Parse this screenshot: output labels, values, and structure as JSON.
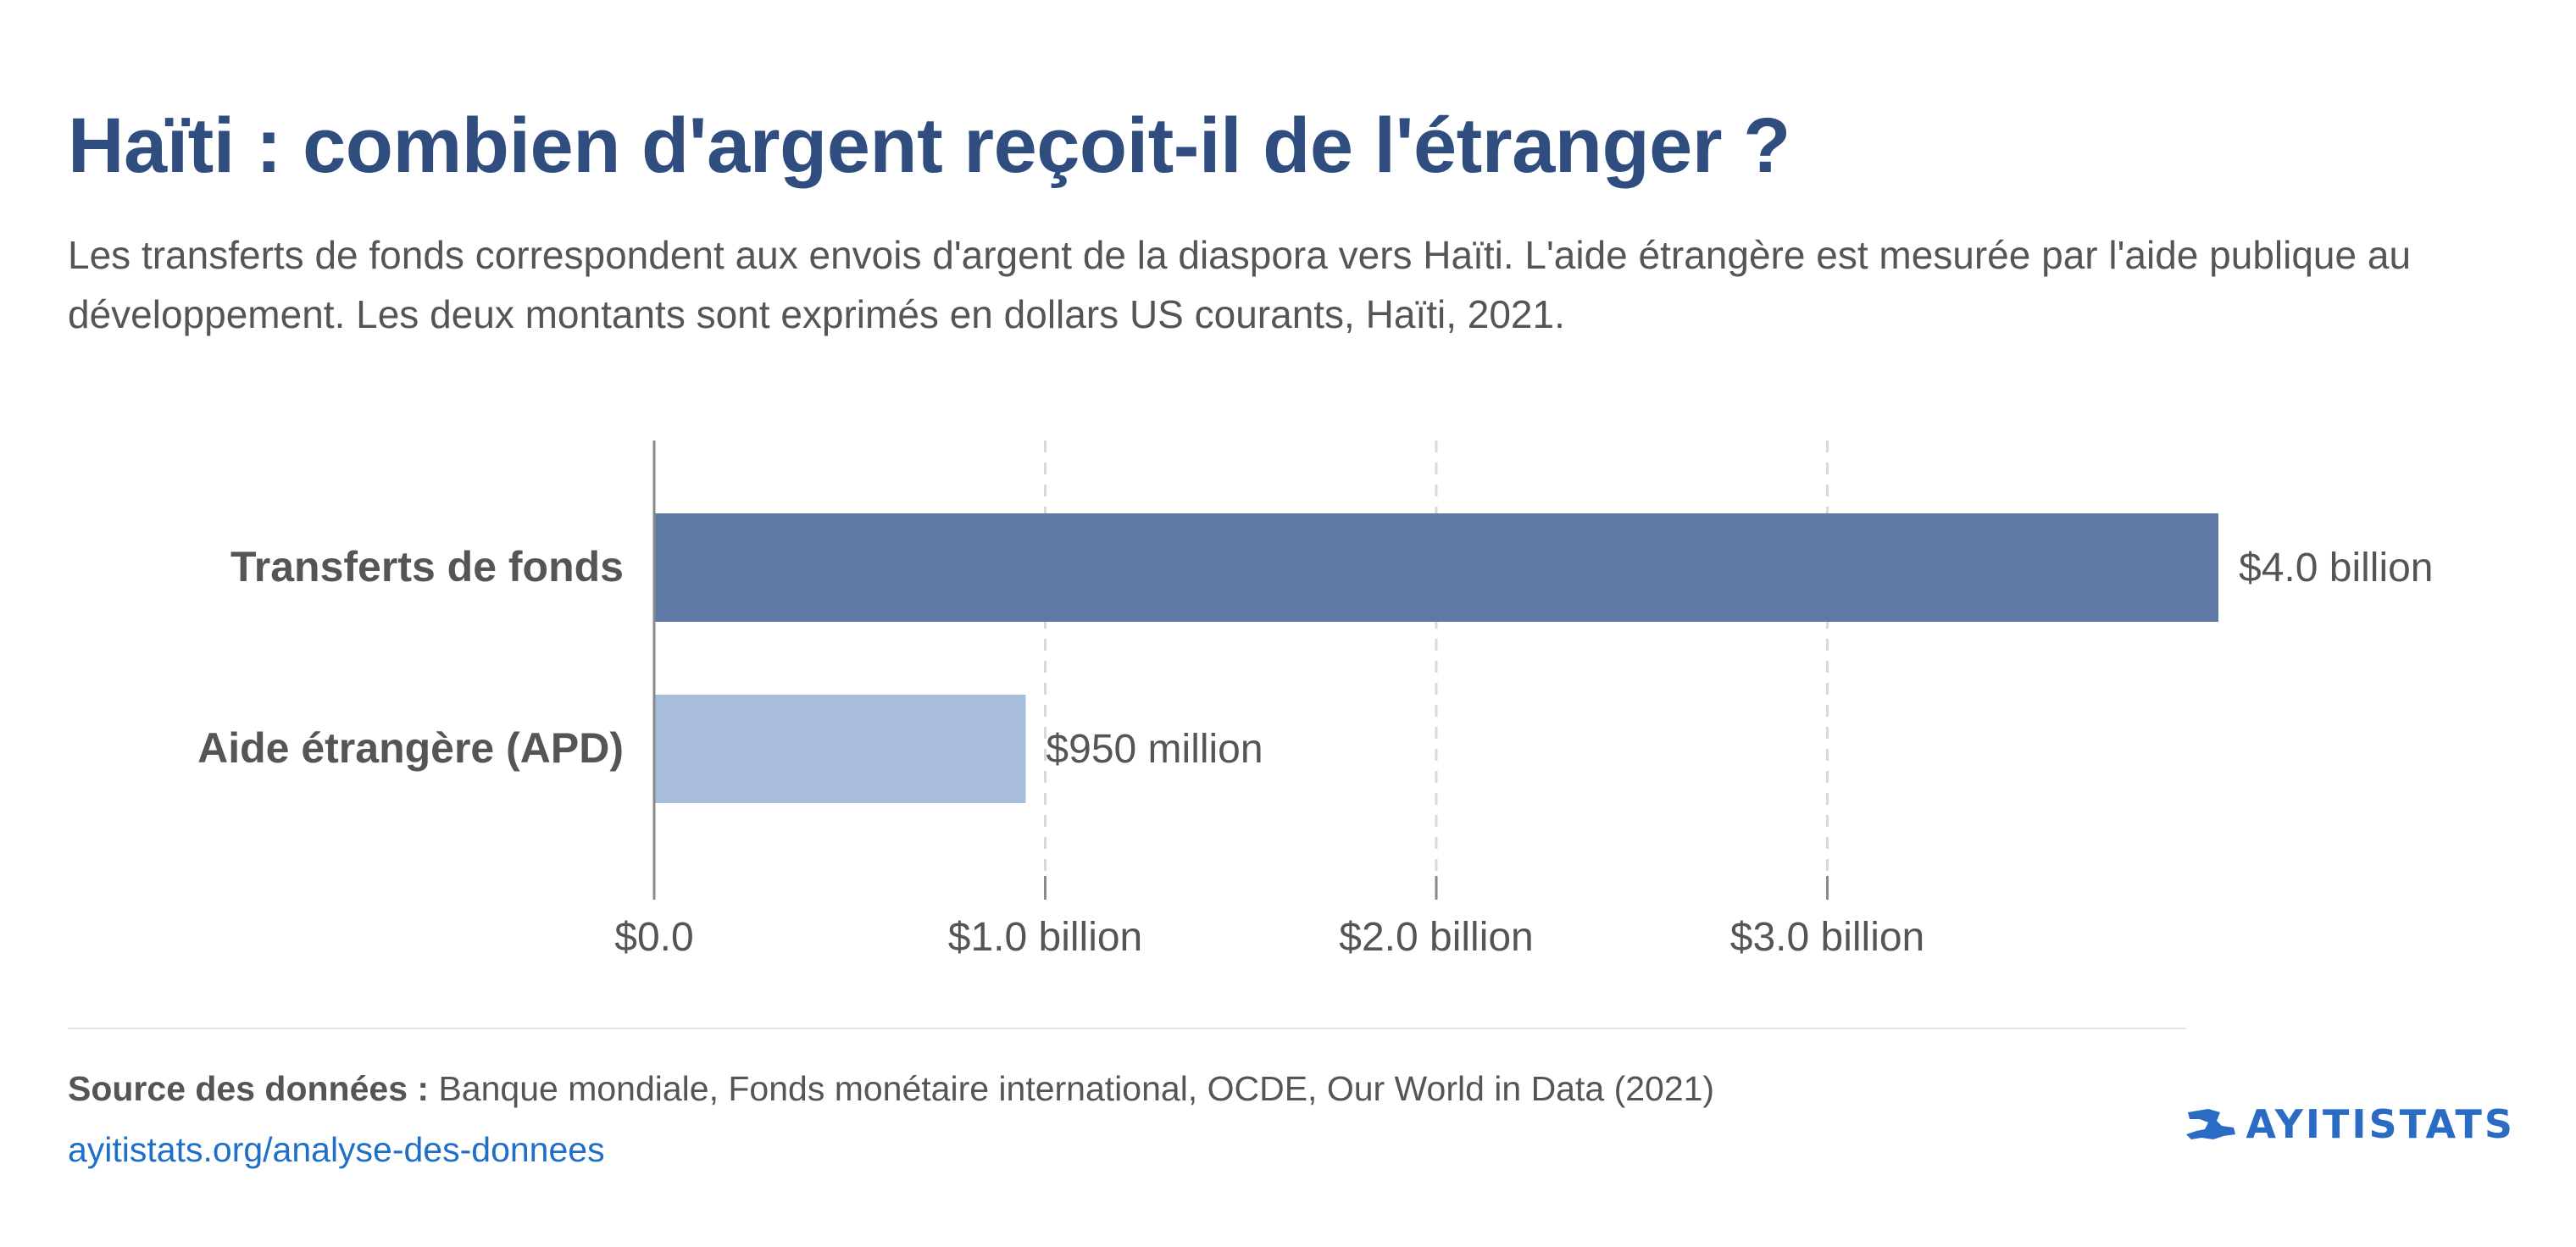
{
  "title": "Haïti : combien d'argent reçoit-il de l'étranger ?",
  "subtitle": "Les transferts de fonds correspondent aux envois d'argent de la diaspora vers Haïti. L'aide étrangère est mesurée par l'aide publique au développement. Les deux montants sont exprimés en dollars US courants, Haïti, 2021.",
  "colors": {
    "title": "#2f4d7e",
    "bars": [
      "#5e79a6",
      "#a8bcdc"
    ],
    "link": "#1e6fc8",
    "logo": "#2a6cc4"
  },
  "chart_data": {
    "type": "bar",
    "orientation": "horizontal",
    "categories": [
      "Transferts de fonds",
      "Aide étrangère (APD)"
    ],
    "values": [
      4.0,
      0.95
    ],
    "value_unit": "billion USD",
    "data_labels": [
      "$4.0 billion",
      "$950 million"
    ],
    "xticks": [
      0,
      1,
      2,
      3
    ],
    "xtick_labels": [
      "$0.0",
      "$1.0 billion",
      "$2.0 billion",
      "$3.0 billion"
    ],
    "xlim": [
      0,
      4.0
    ],
    "grid": "vertical-dashed",
    "legend": "none"
  },
  "footer": {
    "source_label": "Source des données :",
    "source_text": " Banque mondiale, Fonds monétaire international, OCDE, Our World in Data (2021)",
    "link_text": "ayitistats.org/analyse-des-donnees"
  },
  "logo": {
    "text": "AYITISTATS",
    "icon": "haiti-map-icon"
  }
}
